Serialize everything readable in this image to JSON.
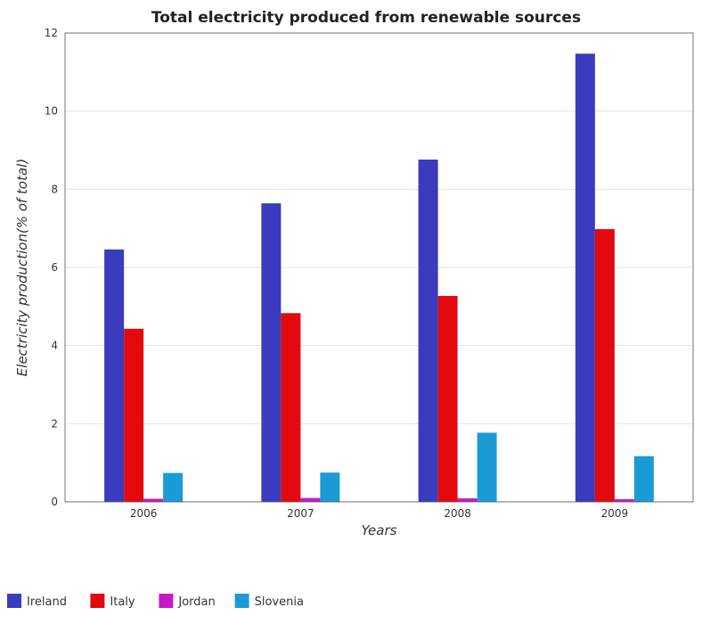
{
  "chart_data": {
    "type": "bar",
    "title": "Total electricity produced from renewable sources",
    "xlabel": "Years",
    "ylabel": "Electricity production(% of total)",
    "categories": [
      "2006",
      "2007",
      "2008",
      "2009"
    ],
    "ylim": [
      0,
      12
    ],
    "yticks": [
      "0",
      "2",
      "4",
      "6",
      "8",
      "10",
      "12"
    ],
    "grid": true,
    "legend": "bottom-left",
    "series": [
      {
        "name": "Ireland",
        "color": "#3b3bbf",
        "values": [
          6.46,
          7.64,
          8.76,
          11.47
        ]
      },
      {
        "name": "Italy",
        "color": "#e3090e",
        "values": [
          4.43,
          4.83,
          5.27,
          6.98
        ]
      },
      {
        "name": "Jordan",
        "color": "#c51ac5",
        "values": [
          0.08,
          0.1,
          0.09,
          0.07
        ]
      },
      {
        "name": "Slovenia",
        "color": "#1b9bd6",
        "values": [
          0.74,
          0.75,
          1.77,
          1.17
        ]
      }
    ]
  }
}
